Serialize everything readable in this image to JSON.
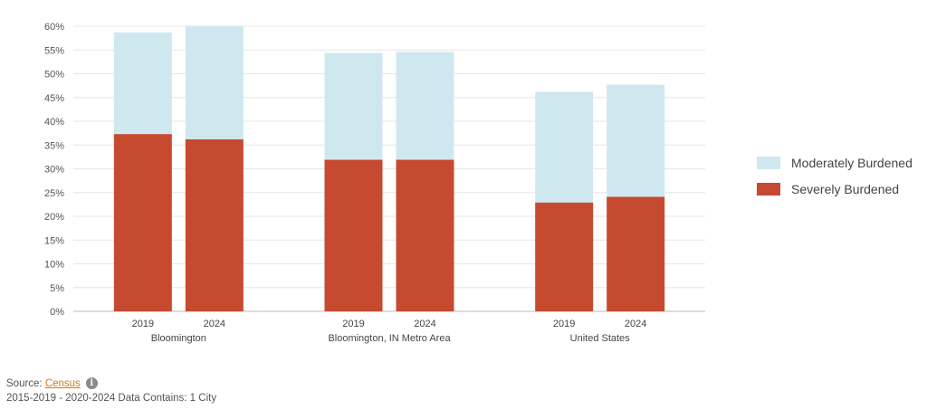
{
  "chart_data": {
    "type": "bar",
    "stacked": true,
    "groups": [
      {
        "label": "Bloomington",
        "categories": [
          "2019",
          "2024"
        ]
      },
      {
        "label": "Bloomington, IN Metro Area",
        "categories": [
          "2019",
          "2024"
        ]
      },
      {
        "label": "United States",
        "categories": [
          "2019",
          "2024"
        ]
      }
    ],
    "series": [
      {
        "name": "Severely Burdened",
        "color": "#c64a2f",
        "values": [
          37.3,
          36.2,
          31.9,
          31.9,
          22.9,
          24.1
        ]
      },
      {
        "name": "Moderately Burdened",
        "color": "#cfe8ef",
        "values": [
          21.4,
          23.8,
          22.5,
          22.7,
          23.3,
          23.6
        ]
      }
    ],
    "ylim": [
      0,
      60
    ],
    "yticks": [
      "0%",
      "5%",
      "10%",
      "15%",
      "20%",
      "25%",
      "30%",
      "35%",
      "40%",
      "45%",
      "50%",
      "55%",
      "60%"
    ],
    "grid": true,
    "legend": "right",
    "legend_order": [
      "Moderately Burdened",
      "Severely Burdened"
    ]
  },
  "footer": {
    "source_prefix": "Source: ",
    "source_link": "Census",
    "info_icon": "i",
    "note": "2015-2019 - 2020-2024 Data Contains: 1 City"
  }
}
